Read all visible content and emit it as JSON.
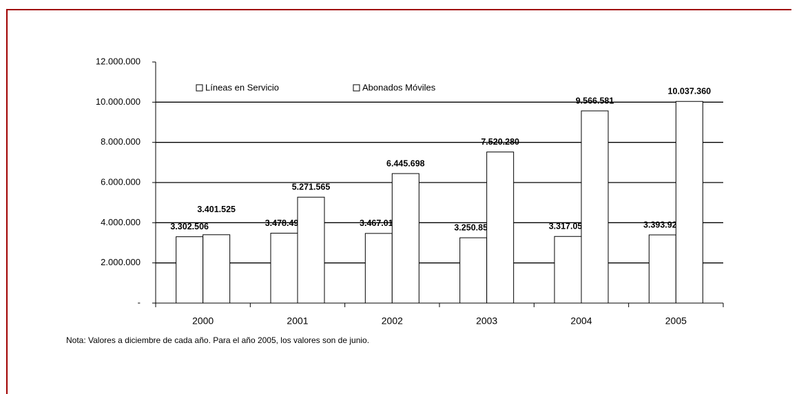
{
  "chart_data": {
    "type": "bar",
    "categories": [
      "2000",
      "2001",
      "2002",
      "2003",
      "2004",
      "2005"
    ],
    "series": [
      {
        "name": "Líneas en Servicio",
        "color": "#ffffff",
        "values": [
          3302506,
          3478490,
          3467015,
          3250855,
          3317052,
          3393921
        ],
        "value_labels": [
          "3.302.506",
          "3.478.490",
          "3.467.015",
          "3.250.855",
          "3.317.052",
          "3.393.921"
        ]
      },
      {
        "name": "Abonados Móviles",
        "color": "#ffffff",
        "values": [
          3401525,
          5271565,
          6445698,
          7520280,
          9566581,
          10037360
        ],
        "value_labels": [
          "3.401.525",
          "5.271.565",
          "6.445.698",
          "7.520.280",
          "9.566.581",
          "10.037.360"
        ]
      }
    ],
    "ylim": [
      0,
      12000000
    ],
    "yticks": [
      {
        "value": 0,
        "label": "-"
      },
      {
        "value": 2000000,
        "label": "2.000.000"
      },
      {
        "value": 4000000,
        "label": "4.000.000"
      },
      {
        "value": 6000000,
        "label": "6.000.000"
      },
      {
        "value": 8000000,
        "label": "8.000.000"
      },
      {
        "value": 10000000,
        "label": "10.000.000"
      },
      {
        "value": 12000000,
        "label": "12.000.000"
      }
    ],
    "grid": true,
    "note": "Nota: Valores a diciembre de cada año. Para el año 2005, los valores son de junio."
  }
}
